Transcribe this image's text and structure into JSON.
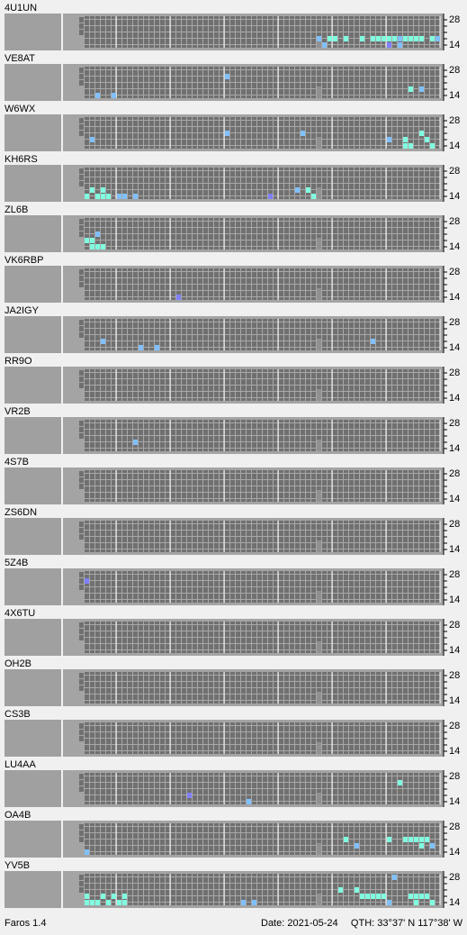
{
  "band_labels": [
    "28",
    "14"
  ],
  "stations": [
    {
      "name": "4U1UN",
      "spots": [
        [
          43,
          3,
          "#80c0ff"
        ],
        [
          45,
          3,
          "#80ffe0"
        ],
        [
          46,
          3,
          "#80ffe0"
        ],
        [
          48,
          3,
          "#80ffe0"
        ],
        [
          51,
          3,
          "#80ffe0"
        ],
        [
          53,
          3,
          "#80ffe0"
        ],
        [
          54,
          3,
          "#80ffe0"
        ],
        [
          55,
          3,
          "#80ffe0"
        ],
        [
          56,
          3,
          "#80ffe0"
        ],
        [
          57,
          3,
          "#80ffe0"
        ],
        [
          58,
          3,
          "#80c0ff"
        ],
        [
          59,
          3,
          "#80ffe0"
        ],
        [
          60,
          3,
          "#80ffe0"
        ],
        [
          61,
          3,
          "#80ffe0"
        ],
        [
          62,
          3,
          "#80ffe0"
        ],
        [
          64,
          3,
          "#80ffe0"
        ],
        [
          65,
          3,
          "#80c0ff"
        ],
        [
          44,
          4,
          "#80c0ff"
        ],
        [
          56,
          4,
          "#8080ff"
        ],
        [
          58,
          4,
          "#80c0ff"
        ]
      ]
    },
    {
      "name": "VE8AT",
      "spots": [
        [
          26,
          1,
          "#80c0ff"
        ],
        [
          2,
          4,
          "#80c0ff"
        ],
        [
          5,
          4,
          "#80c0ff"
        ],
        [
          60,
          3,
          "#80ffe0"
        ],
        [
          62,
          3,
          "#80c0ff"
        ]
      ]
    },
    {
      "name": "W6WX",
      "spots": [
        [
          26,
          2,
          "#80c0ff"
        ],
        [
          1,
          3,
          "#80c0ff"
        ],
        [
          40,
          2,
          "#80c0ff"
        ],
        [
          56,
          3,
          "#80c0ff"
        ],
        [
          59,
          3,
          "#80ffe0"
        ],
        [
          62,
          2,
          "#80ffe0"
        ],
        [
          63,
          3,
          "#80ffe0"
        ],
        [
          59,
          4,
          "#80ffe0"
        ],
        [
          60,
          4,
          "#80ffe0"
        ],
        [
          64,
          4,
          "#80ffe0"
        ]
      ]
    },
    {
      "name": "KH6RS",
      "spots": [
        [
          1,
          3,
          "#80ffe0"
        ],
        [
          3,
          3,
          "#80ffe0"
        ],
        [
          0,
          4,
          "#80ffe0"
        ],
        [
          2,
          4,
          "#80ffe0"
        ],
        [
          3,
          4,
          "#80ffe0"
        ],
        [
          4,
          4,
          "#80ffe0"
        ],
        [
          6,
          4,
          "#80c0ff"
        ],
        [
          7,
          4,
          "#80c0ff"
        ],
        [
          9,
          4,
          "#80c0ff"
        ],
        [
          34,
          4,
          "#8080ff"
        ],
        [
          39,
          3,
          "#80c0ff"
        ],
        [
          41,
          3,
          "#80ffe0"
        ],
        [
          42,
          4,
          "#80ffe0"
        ]
      ]
    },
    {
      "name": "ZL6B",
      "spots": [
        [
          2,
          2,
          "#80c0ff"
        ],
        [
          0,
          3,
          "#80ffe0"
        ],
        [
          1,
          3,
          "#80ffe0"
        ],
        [
          1,
          4,
          "#80ffe0"
        ],
        [
          2,
          4,
          "#80ffe0"
        ],
        [
          3,
          4,
          "#80ffe0"
        ]
      ]
    },
    {
      "name": "VK6RBP",
      "spots": [
        [
          17,
          4,
          "#8080ff"
        ]
      ]
    },
    {
      "name": "JA2IGY",
      "spots": [
        [
          3,
          3,
          "#80c0ff"
        ],
        [
          10,
          4,
          "#80c0ff"
        ],
        [
          13,
          4,
          "#80c0ff"
        ],
        [
          53,
          3,
          "#80c0ff"
        ]
      ]
    },
    {
      "name": "RR9O",
      "spots": []
    },
    {
      "name": "VR2B",
      "spots": [
        [
          9,
          3,
          "#80c0ff"
        ]
      ]
    },
    {
      "name": "4S7B",
      "spots": []
    },
    {
      "name": "ZS6DN",
      "spots": []
    },
    {
      "name": "5Z4B",
      "spots": [
        [
          0,
          1,
          "#8080ff"
        ]
      ]
    },
    {
      "name": "4X6TU",
      "spots": []
    },
    {
      "name": "OH2B",
      "spots": []
    },
    {
      "name": "CS3B",
      "spots": []
    },
    {
      "name": "LU4AA",
      "spots": [
        [
          19,
          3,
          "#8080ff"
        ],
        [
          30,
          4,
          "#80c0ff"
        ],
        [
          58,
          1,
          "#80ffe0"
        ]
      ]
    },
    {
      "name": "OA4B",
      "spots": [
        [
          0,
          4,
          "#80c0ff"
        ],
        [
          48,
          2,
          "#80ffe0"
        ],
        [
          50,
          3,
          "#80c0ff"
        ],
        [
          56,
          2,
          "#80ffe0"
        ],
        [
          59,
          2,
          "#80ffe0"
        ],
        [
          60,
          2,
          "#80ffe0"
        ],
        [
          61,
          2,
          "#80ffe0"
        ],
        [
          62,
          2,
          "#80ffe0"
        ],
        [
          63,
          2,
          "#80ffe0"
        ],
        [
          62,
          3,
          "#80ffe0"
        ],
        [
          64,
          3,
          "#80c0ff"
        ]
      ]
    },
    {
      "name": "YV5B",
      "spots": [
        [
          57,
          0,
          "#80c0ff"
        ],
        [
          0,
          3,
          "#80ffe0"
        ],
        [
          3,
          3,
          "#80ffe0"
        ],
        [
          5,
          3,
          "#80ffe0"
        ],
        [
          7,
          3,
          "#80ffe0"
        ],
        [
          0,
          4,
          "#80ffe0"
        ],
        [
          1,
          4,
          "#80ffe0"
        ],
        [
          2,
          4,
          "#80ffe0"
        ],
        [
          4,
          4,
          "#80ffe0"
        ],
        [
          6,
          4,
          "#80ffe0"
        ],
        [
          7,
          4,
          "#80ffe0"
        ],
        [
          29,
          4,
          "#80c0ff"
        ],
        [
          31,
          4,
          "#80c0ff"
        ],
        [
          47,
          2,
          "#80ffe0"
        ],
        [
          50,
          2,
          "#80ffe0"
        ],
        [
          51,
          3,
          "#80ffe0"
        ],
        [
          52,
          3,
          "#80ffe0"
        ],
        [
          53,
          3,
          "#80ffe0"
        ],
        [
          54,
          3,
          "#80ffe0"
        ],
        [
          55,
          3,
          "#80ffe0"
        ],
        [
          56,
          4,
          "#80c0ff"
        ],
        [
          60,
          3,
          "#80ffe0"
        ],
        [
          61,
          3,
          "#80ffe0"
        ],
        [
          62,
          3,
          "#80ffe0"
        ],
        [
          63,
          3,
          "#80ffe0"
        ],
        [
          64,
          4,
          "#80ffe0"
        ],
        [
          61,
          4,
          "#80ffe0"
        ]
      ]
    }
  ],
  "footer": {
    "app": "Faros 1.4",
    "date": "Date: 2021-05-24",
    "qth": "QTH: 33°37' N  117°38' W"
  }
}
